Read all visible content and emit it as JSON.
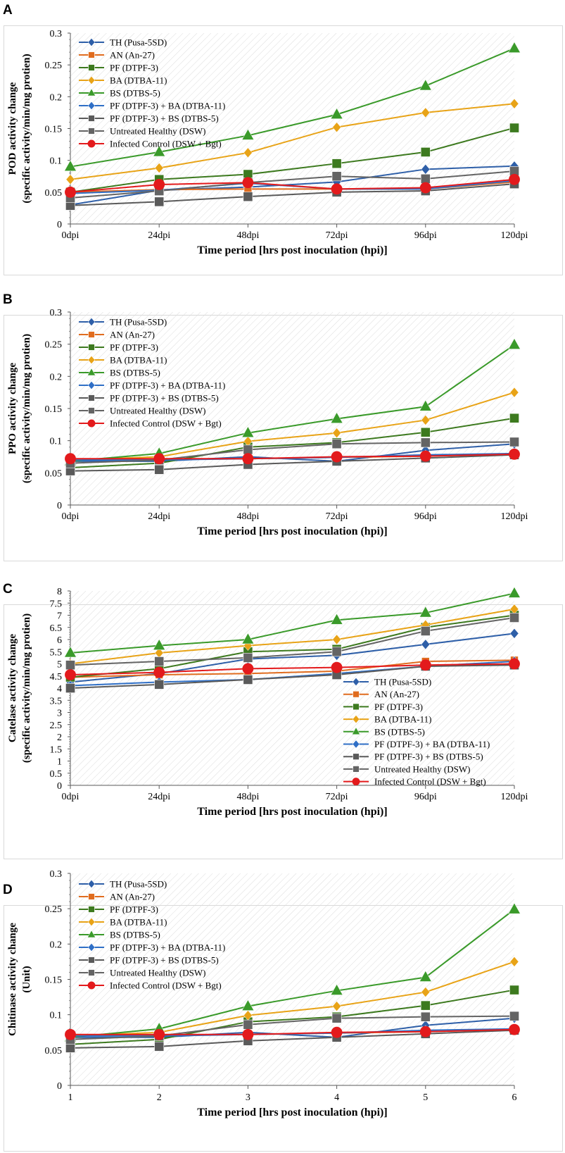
{
  "figure_panels": [
    "A",
    "B",
    "C",
    "D"
  ],
  "colors": {
    "TH": "#2e5fa8",
    "AN": "#e06c1f",
    "PF": "#3d7a1f",
    "BA": "#e8a317",
    "BS": "#3a9a2a",
    "PFBA": "#2f6fc6",
    "PFBS": "#5a5a5a",
    "UH": "#646464",
    "IC": "#e31a1c"
  },
  "chart_data": [
    {
      "type": "line",
      "panel": "A",
      "title": "",
      "xlabel": "Time period [hrs post inoculation (hpi)]",
      "ylabel": "POD activity change",
      "ylabel2": "(specific activity/min/mg protien)",
      "categories": [
        "0dpi",
        "24dpi",
        "48dpi",
        "72dpi",
        "96dpi",
        "120dpi"
      ],
      "yticks": [
        "0",
        "0.05",
        "0.1",
        "0.15",
        "0.2",
        "0.25",
        "0.3"
      ],
      "ylim": [
        0,
        0.3
      ],
      "legend_position": "top-left",
      "series": [
        {
          "key": "TH",
          "name": "TH (Pusa-5SD)",
          "marker": "diamond",
          "values": [
            0.03,
            0.053,
            0.058,
            0.066,
            0.086,
            0.091
          ]
        },
        {
          "key": "AN",
          "name": "AN (An-27)",
          "marker": "square",
          "values": [
            0.05,
            0.054,
            0.055,
            0.055,
            0.055,
            0.066
          ]
        },
        {
          "key": "PF",
          "name": "PF (DTPF-3)",
          "marker": "square",
          "values": [
            0.05,
            0.07,
            0.078,
            0.095,
            0.113,
            0.151
          ]
        },
        {
          "key": "BA",
          "name": "BA (DTBA-11)",
          "marker": "diamond",
          "values": [
            0.07,
            0.088,
            0.112,
            0.152,
            0.175,
            0.189
          ]
        },
        {
          "key": "BS",
          "name": "BS (DTBS-5)",
          "marker": "triangle",
          "values": [
            0.09,
            0.113,
            0.139,
            0.172,
            0.217,
            0.276
          ]
        },
        {
          "key": "PFBA",
          "name": "PF (DTPF-3) + BA (DTBA-11)",
          "marker": "diamond",
          "values": [
            0.048,
            0.053,
            0.064,
            0.055,
            0.055,
            0.068
          ]
        },
        {
          "key": "PFBS",
          "name": "PF (DTPF-3) + BS (DTBS-5)",
          "marker": "square",
          "values": [
            0.029,
            0.035,
            0.043,
            0.05,
            0.052,
            0.063
          ]
        },
        {
          "key": "UH",
          "name": "Untreated Healthy (DSW)",
          "marker": "square",
          "values": [
            0.041,
            0.052,
            0.065,
            0.075,
            0.071,
            0.083
          ]
        },
        {
          "key": "IC",
          "name": "Infected Control (DSW + Bgt)",
          "marker": "circle",
          "values": [
            0.05,
            0.062,
            0.065,
            0.055,
            0.057,
            0.07
          ]
        }
      ]
    },
    {
      "type": "line",
      "panel": "B",
      "title": "",
      "xlabel": "Time period [hrs post inoculation (hpi)]",
      "ylabel": "PPO activity change",
      "ylabel2": "(specific activity/min/mg protien)",
      "categories": [
        "0dpi",
        "24dpi",
        "48dpi",
        "72dpi",
        "96dpi",
        "120dpi"
      ],
      "yticks": [
        "0",
        "0.05",
        "0.1",
        "0.15",
        "0.2",
        "0.25",
        "0.3"
      ],
      "ylim": [
        0,
        0.3
      ],
      "legend_position": "top-left",
      "series": [
        {
          "key": "TH",
          "name": "TH (Pusa-5SD)",
          "marker": "diamond",
          "values": [
            0.068,
            0.068,
            0.075,
            0.068,
            0.085,
            0.095
          ]
        },
        {
          "key": "AN",
          "name": "AN (An-27)",
          "marker": "square",
          "values": [
            0.07,
            0.071,
            0.072,
            0.074,
            0.076,
            0.079
          ]
        },
        {
          "key": "PF",
          "name": "PF (DTPF-3)",
          "marker": "square",
          "values": [
            0.058,
            0.065,
            0.09,
            0.097,
            0.113,
            0.135
          ]
        },
        {
          "key": "BA",
          "name": "BA (DTBA-11)",
          "marker": "diamond",
          "values": [
            0.07,
            0.075,
            0.099,
            0.112,
            0.132,
            0.175
          ]
        },
        {
          "key": "BS",
          "name": "BS (DTBS-5)",
          "marker": "triangle",
          "values": [
            0.068,
            0.08,
            0.112,
            0.134,
            0.153,
            0.249
          ]
        },
        {
          "key": "PFBA",
          "name": "PF (DTPF-3) + BA (DTBA-11)",
          "marker": "diamond",
          "values": [
            0.07,
            0.07,
            0.072,
            0.074,
            0.078,
            0.08
          ]
        },
        {
          "key": "PFBS",
          "name": "PF (DTPF-3) + BS (DTBS-5)",
          "marker": "square",
          "values": [
            0.053,
            0.055,
            0.063,
            0.068,
            0.073,
            0.078
          ]
        },
        {
          "key": "UH",
          "name": "Untreated Healthy (DSW)",
          "marker": "square",
          "values": [
            0.065,
            0.07,
            0.086,
            0.095,
            0.097,
            0.098
          ]
        },
        {
          "key": "IC",
          "name": "Infected Control (DSW + Bgt)",
          "marker": "circle",
          "values": [
            0.072,
            0.072,
            0.072,
            0.075,
            0.076,
            0.079
          ]
        }
      ]
    },
    {
      "type": "line",
      "panel": "C",
      "title": "",
      "xlabel": "Time period [hrs post inoculation (hpi)]",
      "ylabel": "Catelase activity change",
      "ylabel2": "(specific activity/min/mg protien)",
      "categories": [
        "0dpi",
        "24dpi",
        "48dpi",
        "72dpi",
        "96dpi",
        "120dpi"
      ],
      "yticks": [
        "0",
        "0.5",
        "1",
        "1.5",
        "2",
        "2.5",
        "3",
        "3.5",
        "4",
        "4.5",
        "5",
        "5.5",
        "6",
        "6.5",
        "7",
        "7.5",
        "8"
      ],
      "ylim": [
        0,
        8
      ],
      "legend_position": "bottom-right",
      "series": [
        {
          "key": "TH",
          "name": "TH (Pusa-5SD)",
          "marker": "diamond",
          "values": [
            4.25,
            4.6,
            5.2,
            5.35,
            5.8,
            6.25
          ]
        },
        {
          "key": "AN",
          "name": "AN (An-27)",
          "marker": "square",
          "values": [
            4.45,
            4.55,
            4.6,
            4.7,
            5.1,
            5.15
          ]
        },
        {
          "key": "PF",
          "name": "PF (DTPF-3)",
          "marker": "square",
          "values": [
            4.45,
            4.8,
            5.5,
            5.6,
            6.5,
            7.0
          ]
        },
        {
          "key": "BA",
          "name": "BA (DTBA-11)",
          "marker": "diamond",
          "values": [
            5.0,
            5.45,
            5.75,
            6.0,
            6.6,
            7.25
          ]
        },
        {
          "key": "BS",
          "name": "BS (DTBS-5)",
          "marker": "triangle",
          "values": [
            5.45,
            5.75,
            6.0,
            6.8,
            7.1,
            7.9
          ]
        },
        {
          "key": "PFBA",
          "name": "PF (DTPF-3) + BA (DTBA-11)",
          "marker": "diamond",
          "values": [
            4.1,
            4.25,
            4.35,
            4.6,
            4.9,
            5.1
          ]
        },
        {
          "key": "PFBS",
          "name": "PF (DTPF-3) + BS (DTBS-5)",
          "marker": "square",
          "values": [
            4.0,
            4.15,
            4.35,
            4.55,
            4.9,
            4.95
          ]
        },
        {
          "key": "UH",
          "name": "Untreated Healthy (DSW)",
          "marker": "square",
          "values": [
            4.95,
            5.1,
            5.25,
            5.5,
            6.35,
            6.9
          ]
        },
        {
          "key": "IC",
          "name": "Infected Control (DSW + Bgt)",
          "marker": "circle",
          "values": [
            4.55,
            4.65,
            4.8,
            4.85,
            4.95,
            5.0
          ]
        }
      ]
    },
    {
      "type": "line",
      "panel": "D",
      "title": "",
      "xlabel": "Time period [hrs post inoculation (hpi)]",
      "ylabel": "Chitinase activity change",
      "ylabel2": "(Unit)",
      "categories": [
        "1",
        "2",
        "3",
        "4",
        "5",
        "6"
      ],
      "yticks": [
        "0",
        "0.05",
        "0.1",
        "0.15",
        "0.2",
        "0.25",
        "0.3"
      ],
      "ylim": [
        0,
        0.3
      ],
      "legend_position": "top-left",
      "series": [
        {
          "key": "TH",
          "name": "TH (Pusa-5SD)",
          "marker": "diamond",
          "values": [
            0.068,
            0.068,
            0.075,
            0.068,
            0.085,
            0.095
          ]
        },
        {
          "key": "AN",
          "name": "AN (An-27)",
          "marker": "square",
          "values": [
            0.07,
            0.071,
            0.072,
            0.074,
            0.076,
            0.079
          ]
        },
        {
          "key": "PF",
          "name": "PF (DTPF-3)",
          "marker": "square",
          "values": [
            0.058,
            0.065,
            0.09,
            0.097,
            0.113,
            0.135
          ]
        },
        {
          "key": "BA",
          "name": "BA (DTBA-11)",
          "marker": "diamond",
          "values": [
            0.07,
            0.075,
            0.099,
            0.112,
            0.132,
            0.175
          ]
        },
        {
          "key": "BS",
          "name": "BS (DTBS-5)",
          "marker": "triangle",
          "values": [
            0.068,
            0.08,
            0.112,
            0.134,
            0.153,
            0.249
          ]
        },
        {
          "key": "PFBA",
          "name": "PF (DTPF-3) + BA (DTBA-11)",
          "marker": "diamond",
          "values": [
            0.07,
            0.07,
            0.072,
            0.074,
            0.078,
            0.08
          ]
        },
        {
          "key": "PFBS",
          "name": "PF (DTPF-3) + BS (DTBS-5)",
          "marker": "square",
          "values": [
            0.053,
            0.055,
            0.063,
            0.068,
            0.073,
            0.078
          ]
        },
        {
          "key": "UH",
          "name": "Untreated Healthy (DSW)",
          "marker": "square",
          "values": [
            0.065,
            0.07,
            0.086,
            0.095,
            0.097,
            0.098
          ]
        },
        {
          "key": "IC",
          "name": "Infected Control (DSW + Bgt)",
          "marker": "circle",
          "values": [
            0.072,
            0.072,
            0.072,
            0.075,
            0.076,
            0.079
          ]
        }
      ]
    }
  ]
}
